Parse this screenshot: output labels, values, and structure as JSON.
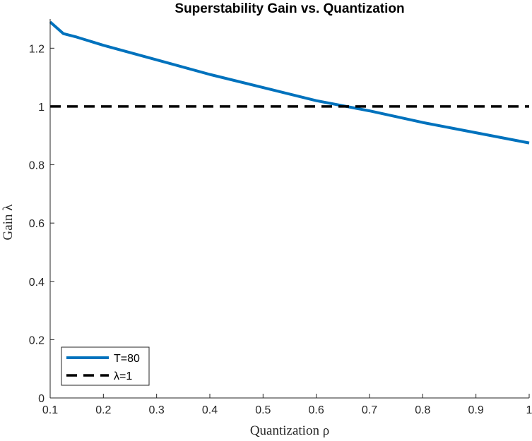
{
  "chart_data": {
    "type": "line",
    "title": "Superstability Gain vs. Quantization",
    "xlabel": "Quantization ρ",
    "ylabel": "Gain λ",
    "xlim": [
      0.1,
      1
    ],
    "ylim": [
      0,
      1.3
    ],
    "xticks": [
      0.1,
      0.2,
      0.3,
      0.4,
      0.5,
      0.6,
      0.7,
      0.8,
      0.9,
      1
    ],
    "xtick_labels": [
      "0.1",
      "0.2",
      "0.3",
      "0.4",
      "0.5",
      "0.6",
      "0.7",
      "0.8",
      "0.9",
      "1"
    ],
    "yticks": [
      0,
      0.2,
      0.4,
      0.6,
      0.8,
      1,
      1.2
    ],
    "ytick_labels": [
      "0",
      "0.2",
      "0.4",
      "0.6",
      "0.8",
      "1",
      "1.2"
    ],
    "legend_position": "bottom-left",
    "series": [
      {
        "name": "T=80",
        "color": "#0072BD",
        "style": "solid",
        "x": [
          0.1,
          0.125,
          0.15,
          0.2,
          0.3,
          0.4,
          0.5,
          0.6,
          0.7,
          0.8,
          0.9,
          1.0
        ],
        "y": [
          1.29,
          1.25,
          1.238,
          1.21,
          1.16,
          1.11,
          1.065,
          1.02,
          0.985,
          0.945,
          0.91,
          0.875
        ]
      },
      {
        "name": "λ=1",
        "color": "#000000",
        "style": "dashed",
        "x": [
          0.1,
          1.0
        ],
        "y": [
          1,
          1
        ]
      }
    ]
  }
}
